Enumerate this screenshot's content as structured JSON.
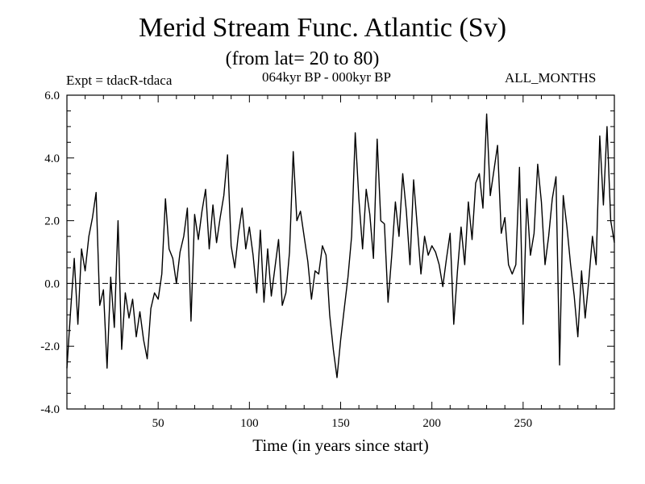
{
  "header": {
    "title": "Merid Stream Func. Atlantic (Sv)",
    "subtitle": "(from lat= 20 to 80)",
    "expt_label": "Expt = tdacR-tdaca",
    "period_label": "064kyr BP - 000kyr BP",
    "months_label": "ALL_MONTHS"
  },
  "chart_data": {
    "type": "line",
    "title": "Merid Stream Func. Atlantic (Sv)",
    "subtitle": "(from lat= 20 to 80)",
    "xlabel": "Time (in years since start)",
    "ylabel": "",
    "xlim": [
      0,
      300
    ],
    "ylim": [
      -4.0,
      6.0
    ],
    "xticks": [
      50,
      100,
      150,
      200,
      250
    ],
    "yticks": [
      -4.0,
      -2.0,
      0.0,
      2.0,
      4.0,
      6.0
    ],
    "xtick_labels": [
      "50",
      "100",
      "150",
      "200",
      "250"
    ],
    "ytick_labels": [
      "-4.0",
      "-2.0",
      "0.0",
      "2.0",
      "4.0",
      "6.0"
    ],
    "reference_line": {
      "y": 0.0,
      "style": "dashed"
    },
    "grid": false,
    "series": [
      {
        "name": "Merid Stream Func. Atlantic",
        "x": [
          0,
          2,
          4,
          6,
          8,
          10,
          12,
          14,
          16,
          18,
          20,
          22,
          24,
          26,
          28,
          30,
          32,
          34,
          36,
          38,
          40,
          42,
          44,
          46,
          48,
          50,
          52,
          54,
          56,
          58,
          60,
          62,
          64,
          66,
          68,
          70,
          72,
          74,
          76,
          78,
          80,
          82,
          84,
          86,
          88,
          90,
          92,
          94,
          96,
          98,
          100,
          102,
          104,
          106,
          108,
          110,
          112,
          114,
          116,
          118,
          120,
          122,
          124,
          126,
          128,
          130,
          132,
          134,
          136,
          138,
          140,
          142,
          144,
          146,
          148,
          150,
          152,
          154,
          156,
          158,
          160,
          162,
          164,
          166,
          168,
          170,
          172,
          174,
          176,
          178,
          180,
          182,
          184,
          186,
          188,
          190,
          192,
          194,
          196,
          198,
          200,
          202,
          204,
          206,
          208,
          210,
          212,
          214,
          216,
          218,
          220,
          222,
          224,
          226,
          228,
          230,
          232,
          234,
          236,
          238,
          240,
          242,
          244,
          246,
          248,
          250,
          252,
          254,
          256,
          258,
          260,
          262,
          264,
          266,
          268,
          270,
          272,
          274,
          276,
          278,
          280,
          282,
          284,
          286,
          288,
          290,
          292,
          294,
          296,
          298,
          300
        ],
        "values": [
          -2.7,
          -0.9,
          0.8,
          -1.3,
          1.1,
          0.4,
          1.5,
          2.1,
          2.9,
          -0.7,
          -0.2,
          -2.7,
          0.2,
          -1.4,
          2.0,
          -2.1,
          -0.3,
          -1.1,
          -0.5,
          -1.7,
          -0.9,
          -1.8,
          -2.4,
          -0.8,
          -0.3,
          -0.5,
          0.3,
          2.7,
          1.1,
          0.8,
          0.0,
          1.0,
          1.5,
          2.4,
          -1.2,
          2.2,
          1.4,
          2.3,
          3.0,
          1.1,
          2.5,
          1.3,
          2.1,
          2.8,
          4.1,
          1.2,
          0.5,
          1.6,
          2.4,
          1.1,
          1.8,
          0.9,
          -0.3,
          1.7,
          -0.6,
          1.1,
          -0.4,
          0.5,
          1.4,
          -0.7,
          -0.3,
          1.0,
          4.2,
          2.0,
          2.3,
          1.5,
          0.7,
          -0.5,
          0.4,
          0.3,
          1.2,
          0.9,
          -1.0,
          -2.1,
          -3.0,
          -1.8,
          -0.8,
          0.2,
          1.5,
          4.8,
          2.7,
          1.1,
          3.0,
          2.2,
          0.8,
          4.6,
          2.0,
          1.9,
          -0.6,
          0.9,
          2.6,
          1.5,
          3.5,
          2.3,
          0.6,
          3.3,
          1.8,
          0.3,
          1.5,
          0.9,
          1.2,
          1.0,
          0.6,
          -0.1,
          0.8,
          1.6,
          -1.3,
          0.4,
          1.8,
          0.6,
          2.6,
          1.4,
          3.2,
          3.5,
          2.4,
          5.4,
          2.8,
          3.6,
          4.4,
          1.6,
          2.1,
          0.6,
          0.3,
          0.6,
          3.7,
          -1.3,
          2.7,
          0.9,
          1.6,
          3.8,
          2.6,
          0.6,
          1.5,
          2.7,
          3.4,
          -2.6,
          2.8,
          1.8,
          0.6,
          -0.4,
          -1.7,
          0.4,
          -1.1,
          0.1,
          1.5,
          0.6,
          4.7,
          2.5,
          5.0,
          2.0,
          1.3
        ]
      }
    ]
  }
}
